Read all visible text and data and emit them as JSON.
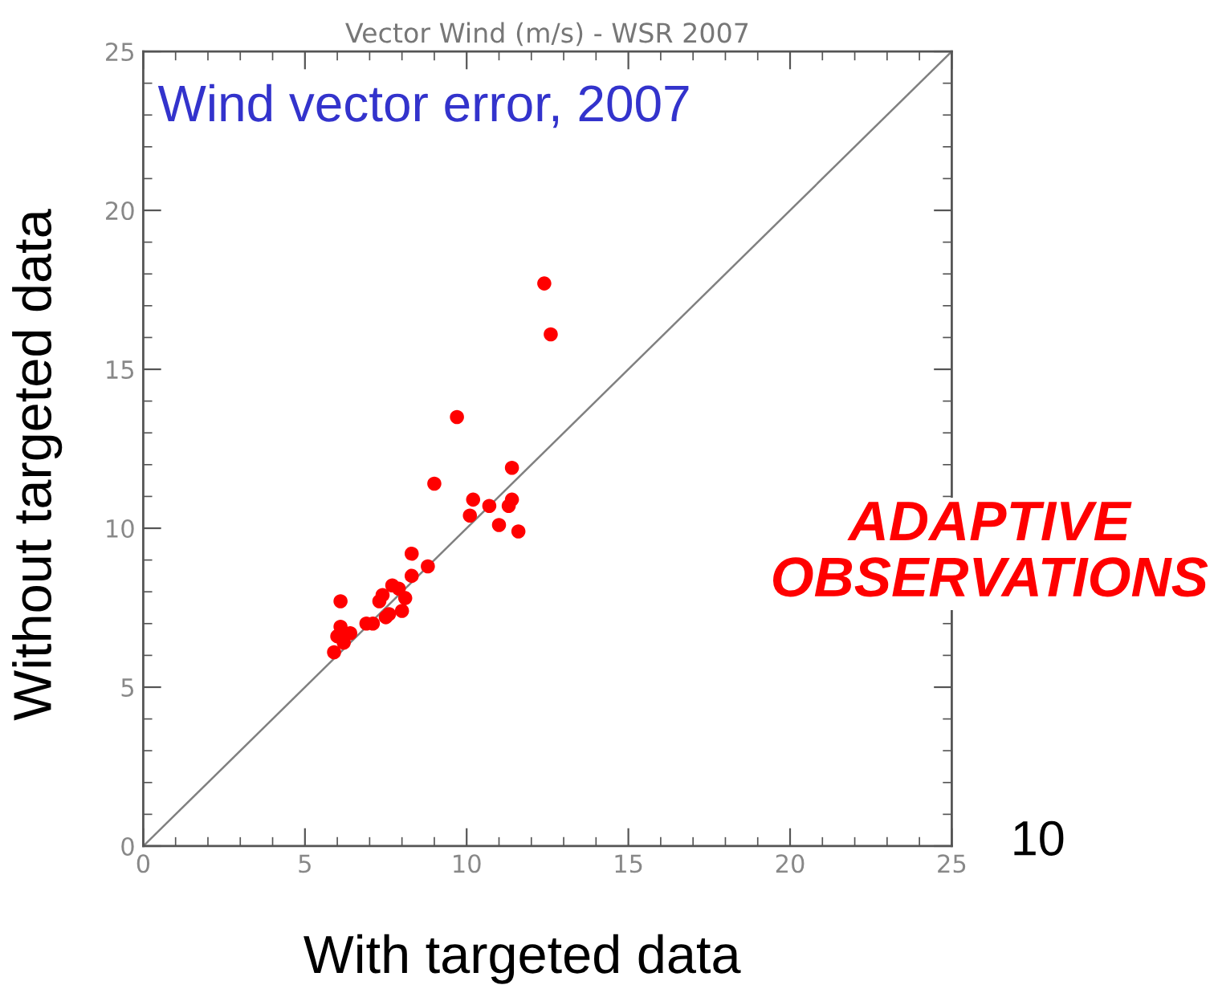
{
  "chart_data": {
    "type": "scatter",
    "title": "Vector Wind (m/s) - WSR 2007",
    "xlabel": "With targeted data",
    "ylabel": "Without targeted data",
    "annotations": [
      "Wind vector error, 2007",
      "ADAPTIVE\nOBSERVATIONS",
      "10"
    ],
    "xlim": [
      0,
      25
    ],
    "ylim": [
      0,
      25
    ],
    "xticks": [
      0,
      5,
      10,
      15,
      20,
      25
    ],
    "yticks": [
      0,
      5,
      10,
      15,
      20,
      25
    ],
    "grid": false,
    "legend": false,
    "marker": "circle",
    "series": [
      {
        "color": "#ff0000",
        "x": [
          12.4,
          12.6,
          9.7,
          11.4,
          9.0,
          10.2,
          10.7,
          11.4,
          11.3,
          10.1,
          11.0,
          11.6,
          8.3,
          8.8,
          8.3,
          7.7,
          7.9,
          7.4,
          8.1,
          7.3,
          6.1,
          8.0,
          7.6,
          7.5,
          7.1,
          6.9,
          6.1,
          6.4,
          6.0,
          5.9,
          6.2
        ],
        "values": [
          17.7,
          16.1,
          13.5,
          11.9,
          11.4,
          10.9,
          10.7,
          10.9,
          10.7,
          10.4,
          10.1,
          9.9,
          9.2,
          8.8,
          8.5,
          8.2,
          8.1,
          7.9,
          7.8,
          7.7,
          7.7,
          7.4,
          7.3,
          7.2,
          7.0,
          7.0,
          6.9,
          6.7,
          6.6,
          6.1,
          6.4
        ]
      },
      {
        "type": "line",
        "color": "#808080",
        "x": [
          0,
          25
        ],
        "values": [
          0,
          25
        ],
        "marker": "none",
        "line_style": "solid"
      }
    ]
  }
}
